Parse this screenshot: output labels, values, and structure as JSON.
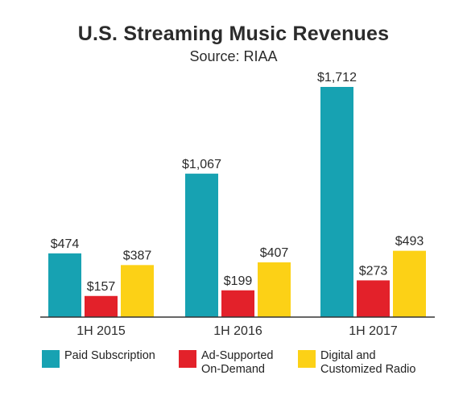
{
  "chart_data": {
    "type": "bar",
    "title": "U.S. Streaming Music Revenues",
    "subtitle": "Source: RIAA",
    "categories": [
      "1H 2015",
      "1H 2016",
      "1H 2017"
    ],
    "series": [
      {
        "name": "Paid Subscription",
        "color": "#17a2b2",
        "values": [
          474,
          1067,
          1712
        ],
        "value_labels": [
          "$474",
          "$1,067",
          "$1,712"
        ]
      },
      {
        "name": "Ad-Supported\nOn-Demand",
        "color": "#e3212a",
        "values": [
          157,
          199,
          273
        ],
        "value_labels": [
          "$157",
          "$199",
          "$273"
        ]
      },
      {
        "name": "Digital and\nCustomized Radio",
        "color": "#fcd116",
        "values": [
          387,
          407,
          493
        ],
        "value_labels": [
          "$387",
          "$407",
          "$493"
        ]
      }
    ],
    "ylim": [
      0,
      1712
    ],
    "grid": false,
    "legend_position": "bottom"
  }
}
